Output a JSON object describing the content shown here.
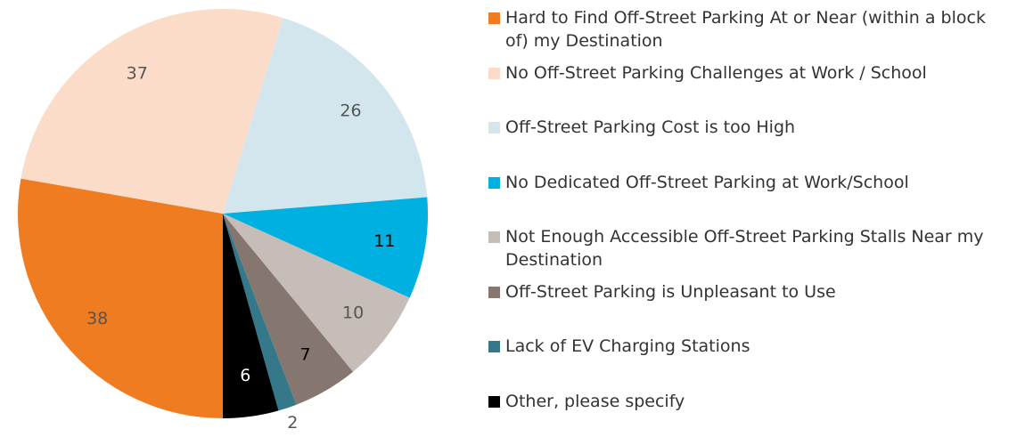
{
  "chart_data": {
    "type": "pie",
    "categories": [
      "Hard to Find Off-Street Parking At or Near (within a block of) my Destination",
      "No Off-Street Parking Challenges at Work / School",
      "Off-Street Parking Cost is too High",
      "No Dedicated Off-Street Parking at Work/School",
      "Not Enough Accessible Off-Street Parking Stalls Near my Destination",
      "Off-Street Parking is Unpleasant to Use",
      "Lack of EV Charging Stations",
      "Other, please specify"
    ],
    "values": [
      38,
      37,
      26,
      11,
      10,
      7,
      2,
      6
    ],
    "colors": [
      "#f07c22",
      "#fbdcc8",
      "#d4e6ed",
      "#00b0e0",
      "#c6bdb8",
      "#857670",
      "#34788a",
      "#000000"
    ],
    "legend": "right"
  }
}
